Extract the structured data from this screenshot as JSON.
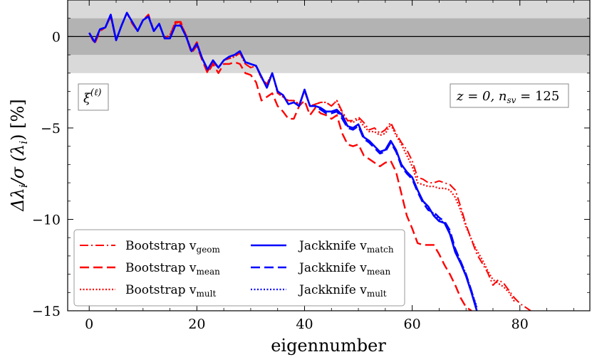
{
  "chart_data": {
    "type": "line",
    "xlabel": "eigennumber",
    "ylabel": "Δλ_i / σ(λ_i)  [%]",
    "xlim": [
      -4,
      93
    ],
    "ylim": [
      -15,
      2
    ],
    "xticks": [
      0,
      20,
      40,
      60,
      80
    ],
    "yticks": [
      0,
      -5,
      -10,
      -15
    ],
    "xtick_labels": [
      "0",
      "20",
      "40",
      "60",
      "80"
    ],
    "ytick_labels": [
      "0",
      "−5",
      "−10",
      "−15"
    ],
    "bands": [
      {
        "lo": -2,
        "hi": 2,
        "color": "#d9d9d9"
      },
      {
        "lo": -1,
        "hi": 1,
        "color": "#b3b3b3"
      }
    ],
    "zero_line": 0,
    "annotations": {
      "top_left": "ξ(ℓ)",
      "top_right": "z = 0,  n_sv = 125"
    },
    "legend_placement": "lower-left",
    "series": [
      {
        "name": "Bootstrap v_geom",
        "color": "#ff0000",
        "dash": "dashdot",
        "x": [
          0,
          1,
          2,
          3,
          4,
          5,
          6,
          7,
          8,
          9,
          10,
          11,
          12,
          13,
          14,
          15,
          16,
          17,
          18,
          19,
          20,
          21,
          22,
          23,
          24,
          25,
          26,
          27,
          28,
          29,
          30,
          31,
          32,
          33,
          34,
          35,
          36,
          37,
          38,
          39,
          40,
          41,
          42,
          43,
          44,
          45,
          46,
          47,
          48,
          49,
          50,
          51,
          52,
          53,
          54,
          55,
          56,
          57,
          58,
          59,
          60,
          61,
          62,
          63,
          64,
          65,
          66,
          67,
          68,
          69,
          70,
          71,
          72,
          73,
          74,
          75,
          76,
          77,
          78,
          79,
          80,
          81,
          82
        ],
        "y": [
          0.2,
          -0.3,
          0.4,
          0.5,
          1.1,
          -0.2,
          0.6,
          1.3,
          0.8,
          0.3,
          0.9,
          1.1,
          0.3,
          0.7,
          -0.1,
          0.1,
          0.7,
          0.7,
          0.1,
          -0.8,
          -0.3,
          -1.2,
          -1.9,
          -1.4,
          -1.7,
          -1.3,
          -1.2,
          -1.1,
          -0.9,
          -1.5,
          -1.7,
          -1.6,
          -2.3,
          -2.6,
          -2.0,
          -3.1,
          -3.3,
          -3.5,
          -3.5,
          -3.7,
          -3.0,
          -3.8,
          -3.7,
          -3.6,
          -3.6,
          -3.8,
          -3.5,
          -4.1,
          -4.6,
          -4.6,
          -4.4,
          -4.7,
          -5.1,
          -5.0,
          -5.3,
          -5.1,
          -4.7,
          -5.3,
          -5.8,
          -6.2,
          -6.8,
          -7.7,
          -7.8,
          -8.0,
          -8.0,
          -7.9,
          -8.0,
          -8.1,
          -8.4,
          -9.3,
          -10.3,
          -11.1,
          -11.9,
          -12.4,
          -12.9,
          -13.6,
          -13.3,
          -13.5,
          -13.9,
          -14.3,
          -14.6,
          -14.8,
          -15.0
        ]
      },
      {
        "name": "Bootstrap v_mean",
        "color": "#ff0000",
        "dash": "dashed",
        "x": [
          0,
          1,
          2,
          3,
          4,
          5,
          6,
          7,
          8,
          9,
          10,
          11,
          12,
          13,
          14,
          15,
          16,
          17,
          18,
          19,
          20,
          21,
          22,
          23,
          24,
          25,
          26,
          27,
          28,
          29,
          30,
          31,
          32,
          33,
          34,
          35,
          36,
          37,
          38,
          39,
          40,
          41,
          42,
          43,
          44,
          45,
          46,
          47,
          48,
          49,
          50,
          51,
          52,
          53,
          54,
          55,
          56,
          57,
          58,
          59,
          60,
          61,
          62,
          63,
          64,
          65,
          66,
          67,
          68,
          69,
          70,
          71
        ],
        "y": [
          0.2,
          -0.4,
          0.3,
          0.5,
          1.1,
          -0.2,
          0.6,
          1.3,
          0.7,
          0.3,
          0.9,
          1.2,
          0.3,
          0.7,
          -0.1,
          0.0,
          0.8,
          0.8,
          0.0,
          -0.9,
          -0.5,
          -1.3,
          -2.0,
          -1.5,
          -2.0,
          -1.5,
          -1.5,
          -1.4,
          -1.5,
          -2.0,
          -2.1,
          -2.5,
          -3.5,
          -3.3,
          -3.1,
          -3.8,
          -4.1,
          -4.5,
          -4.5,
          -3.8,
          -3.5,
          -4.3,
          -3.9,
          -4.2,
          -4.3,
          -4.5,
          -4.3,
          -5.3,
          -5.9,
          -6.0,
          -5.9,
          -6.5,
          -6.7,
          -6.9,
          -7.1,
          -6.9,
          -6.8,
          -7.4,
          -8.6,
          -9.8,
          -10.5,
          -11.3,
          -11.4,
          -11.4,
          -11.4,
          -11.9,
          -12.5,
          -13.0,
          -13.6,
          -14.3,
          -14.8,
          -15.0
        ]
      },
      {
        "name": "Bootstrap v_mult",
        "color": "#ff0000",
        "dash": "dotted",
        "x": [
          0,
          1,
          2,
          3,
          4,
          5,
          6,
          7,
          8,
          9,
          10,
          11,
          12,
          13,
          14,
          15,
          16,
          17,
          18,
          19,
          20,
          21,
          22,
          23,
          24,
          25,
          26,
          27,
          28,
          29,
          30,
          31,
          32,
          33,
          34,
          35,
          36,
          37,
          38,
          39,
          40,
          41,
          42,
          43,
          44,
          45,
          46,
          47,
          48,
          49,
          50,
          51,
          52,
          53,
          54,
          55,
          56,
          57,
          58,
          59,
          60,
          61,
          62,
          63,
          64,
          65,
          66,
          67,
          68,
          69,
          70,
          71,
          72,
          73,
          74,
          75,
          76,
          77,
          78,
          79
        ],
        "y": [
          0.2,
          -0.3,
          0.4,
          0.5,
          1.1,
          -0.2,
          0.6,
          1.3,
          0.8,
          0.3,
          0.9,
          1.1,
          0.3,
          0.7,
          -0.1,
          0.1,
          0.8,
          0.7,
          0.1,
          -0.8,
          -0.3,
          -1.2,
          -1.9,
          -1.4,
          -1.7,
          -1.3,
          -1.2,
          -1.1,
          -0.9,
          -1.5,
          -1.7,
          -1.6,
          -2.3,
          -2.6,
          -2.0,
          -3.1,
          -3.3,
          -3.5,
          -3.5,
          -3.7,
          -3.0,
          -3.8,
          -3.7,
          -3.6,
          -3.6,
          -3.8,
          -3.5,
          -4.2,
          -4.6,
          -4.7,
          -4.5,
          -4.9,
          -5.2,
          -5.2,
          -5.4,
          -5.3,
          -4.8,
          -5.4,
          -5.9,
          -6.5,
          -7.1,
          -8.0,
          -8.1,
          -8.2,
          -8.2,
          -8.3,
          -8.3,
          -8.4,
          -8.8,
          -9.5,
          -10.4,
          -11.1,
          -11.7,
          -12.2,
          -12.8,
          -13.3,
          -13.5,
          -13.7,
          -14.0,
          -14.5
        ]
      },
      {
        "name": "Jackknife v_match",
        "color": "#0000ff",
        "dash": "solid",
        "x": [
          0,
          1,
          2,
          3,
          4,
          5,
          6,
          7,
          8,
          9,
          10,
          11,
          12,
          13,
          14,
          15,
          16,
          17,
          18,
          19,
          20,
          21,
          22,
          23,
          24,
          25,
          26,
          27,
          28,
          29,
          30,
          31,
          32,
          33,
          34,
          35,
          36,
          37,
          38,
          39,
          40,
          41,
          42,
          43,
          44,
          45,
          46,
          47,
          48,
          49,
          50,
          51,
          52,
          53,
          54,
          55,
          56,
          57,
          58,
          59,
          60,
          61,
          62,
          63,
          64,
          65,
          66,
          67,
          68,
          69,
          70,
          71,
          72
        ],
        "y": [
          0.2,
          -0.3,
          0.4,
          0.5,
          1.2,
          -0.2,
          0.6,
          1.3,
          0.8,
          0.3,
          0.9,
          1.1,
          0.3,
          0.7,
          -0.1,
          -0.1,
          0.6,
          0.6,
          0.0,
          -0.8,
          -0.4,
          -1.2,
          -1.8,
          -1.3,
          -1.7,
          -1.3,
          -1.1,
          -1.0,
          -0.8,
          -1.4,
          -1.5,
          -1.6,
          -2.2,
          -2.8,
          -2.0,
          -3.0,
          -3.2,
          -3.7,
          -3.6,
          -3.8,
          -2.9,
          -3.8,
          -3.8,
          -3.9,
          -4.1,
          -4.1,
          -4.0,
          -4.3,
          -4.9,
          -5.0,
          -4.8,
          -5.5,
          -5.7,
          -6.0,
          -6.3,
          -6.2,
          -5.7,
          -6.2,
          -7.0,
          -7.4,
          -7.7,
          -8.4,
          -9.0,
          -9.3,
          -9.8,
          -10.1,
          -10.2,
          -10.8,
          -11.8,
          -12.4,
          -13.1,
          -14.0,
          -15.0
        ]
      },
      {
        "name": "Jackknife v_mean",
        "color": "#0000ff",
        "dash": "dashed",
        "x": [
          0,
          1,
          2,
          3,
          4,
          5,
          6,
          7,
          8,
          9,
          10,
          11,
          12,
          13,
          14,
          15,
          16,
          17,
          18,
          19,
          20,
          21,
          22,
          23,
          24,
          25,
          26,
          27,
          28,
          29,
          30,
          31,
          32,
          33,
          34,
          35,
          36,
          37,
          38,
          39,
          40,
          41,
          42,
          43,
          44,
          45,
          46,
          47,
          48,
          49,
          50,
          51,
          52,
          53,
          54,
          55,
          56,
          57,
          58,
          59,
          60,
          61,
          62,
          63,
          64,
          65,
          66,
          67,
          68,
          69,
          70,
          71,
          72
        ],
        "y": [
          0.2,
          -0.3,
          0.4,
          0.5,
          1.2,
          -0.2,
          0.6,
          1.3,
          0.8,
          0.3,
          0.9,
          1.1,
          0.3,
          0.7,
          -0.1,
          -0.1,
          0.6,
          0.6,
          0.0,
          -0.8,
          -0.4,
          -1.2,
          -1.8,
          -1.3,
          -1.7,
          -1.3,
          -1.1,
          -1.0,
          -0.8,
          -1.4,
          -1.5,
          -1.6,
          -2.2,
          -2.8,
          -2.0,
          -3.0,
          -3.2,
          -3.7,
          -3.6,
          -3.8,
          -2.9,
          -3.8,
          -3.8,
          -4.0,
          -4.2,
          -4.2,
          -4.1,
          -4.5,
          -5.0,
          -5.1,
          -4.9,
          -5.6,
          -5.8,
          -6.1,
          -6.4,
          -6.3,
          -5.8,
          -6.3,
          -7.1,
          -7.5,
          -7.8,
          -8.5,
          -9.1,
          -9.5,
          -9.6,
          -9.9,
          -10.1,
          -10.6,
          -11.6,
          -12.3,
          -13.0,
          -13.9,
          -14.9
        ]
      },
      {
        "name": "Jackknife v_mult",
        "color": "#0000ff",
        "dash": "dotted",
        "x": [
          0,
          1,
          2,
          3,
          4,
          5,
          6,
          7,
          8,
          9,
          10,
          11,
          12,
          13,
          14,
          15,
          16,
          17,
          18,
          19,
          20,
          21,
          22,
          23,
          24,
          25,
          26,
          27,
          28,
          29,
          30,
          31,
          32,
          33,
          34,
          35,
          36,
          37,
          38,
          39,
          40,
          41,
          42,
          43,
          44,
          45,
          46,
          47,
          48,
          49,
          50,
          51,
          52,
          53,
          54,
          55,
          56,
          57,
          58,
          59,
          60,
          61,
          62,
          63,
          64,
          65,
          66,
          67,
          68,
          69,
          70,
          71,
          72
        ],
        "y": [
          0.2,
          -0.3,
          0.4,
          0.5,
          1.2,
          -0.2,
          0.6,
          1.3,
          0.8,
          0.3,
          0.9,
          1.1,
          0.3,
          0.7,
          -0.1,
          -0.1,
          0.6,
          0.6,
          0.0,
          -0.8,
          -0.4,
          -1.2,
          -1.8,
          -1.3,
          -1.7,
          -1.3,
          -1.1,
          -1.0,
          -0.8,
          -1.4,
          -1.5,
          -1.6,
          -2.2,
          -2.8,
          -2.0,
          -3.0,
          -3.2,
          -3.7,
          -3.6,
          -3.8,
          -2.9,
          -3.8,
          -3.8,
          -3.9,
          -4.1,
          -4.1,
          -4.0,
          -4.4,
          -4.9,
          -5.0,
          -4.8,
          -5.5,
          -5.7,
          -6.0,
          -6.3,
          -6.2,
          -5.7,
          -6.2,
          -7.0,
          -7.4,
          -7.7,
          -8.4,
          -9.0,
          -9.4,
          -9.7,
          -10.0,
          -10.2,
          -10.7,
          -11.7,
          -12.3,
          -13.0,
          -13.9,
          -14.8
        ]
      }
    ]
  },
  "legend": {
    "left": [
      {
        "base": "Bootstrap v",
        "sub": "geom"
      },
      {
        "base": "Bootstrap v",
        "sub": "mean"
      },
      {
        "base": "Bootstrap v",
        "sub": "mult"
      }
    ],
    "right": [
      {
        "base": "Jackknife v",
        "sub": "match"
      },
      {
        "base": "Jackknife v",
        "sub": "mean"
      },
      {
        "base": "Jackknife v",
        "sub": "mult"
      }
    ]
  },
  "text": {
    "xlabel": "eigennumber",
    "xi_main": "ξ",
    "xi_sup": "(ℓ)",
    "z_label": "z = 0,  n",
    "nsv_sub": "sv",
    "nsv_value": " = 125",
    "ylabel_main": "Δλ",
    "ylabel_i1": "i",
    "ylabel_mid": "/σ (λ",
    "ylabel_i2": "i",
    "ylabel_end": ")  [%]"
  }
}
